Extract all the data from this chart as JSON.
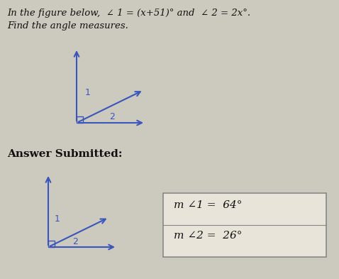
{
  "background_color": "#ccc9be",
  "title_line1": "In the figure below,  ∠ 1 = (x+51)° and  ∠ 2 = 2x°.",
  "title_line2": "Find the angle measures.",
  "answer_label": "Answer Submitted:",
  "angle1_label": "m ∠1 =  64°",
  "angle2_label": "m ∠2 =  26°",
  "arrow_color": "#3a55bb",
  "text_color": "#111111",
  "box_color": "#e8e4da",
  "box_edge_color": "#888888",
  "fig_width": 4.78,
  "fig_height": 3.93,
  "dpi": 100
}
